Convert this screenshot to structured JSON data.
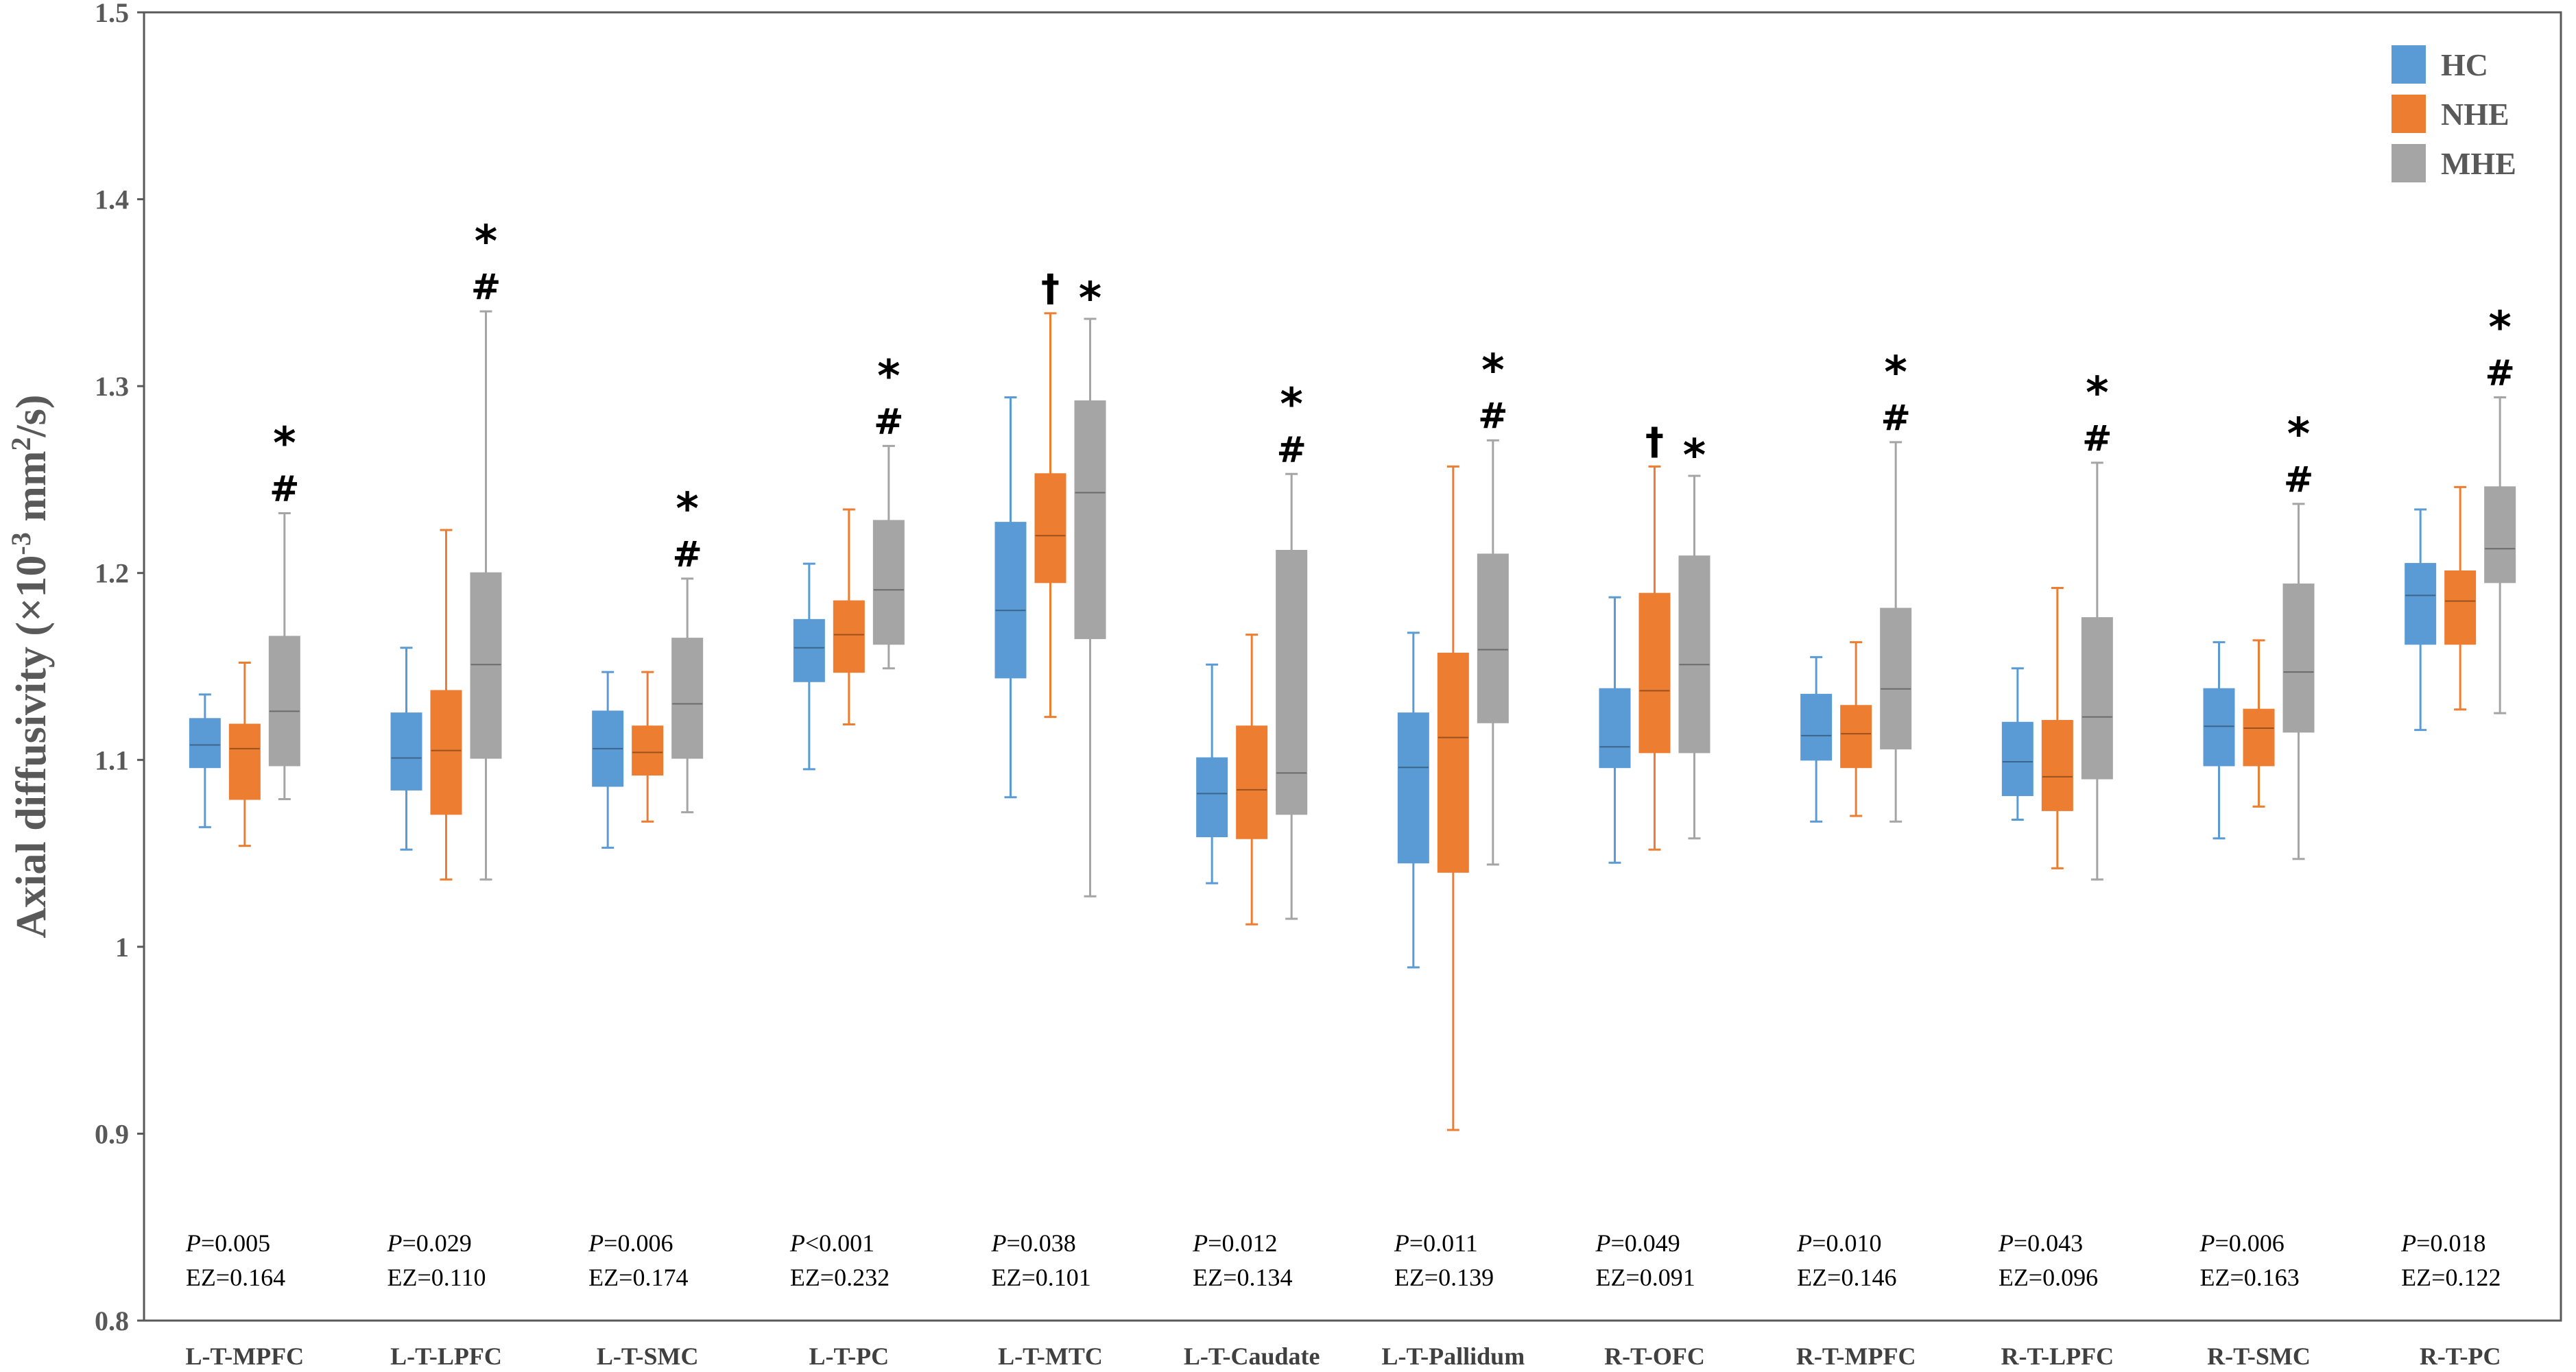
{
  "chart_data": {
    "type": "box",
    "title": "",
    "xlabel": "",
    "ylabel": "Axial diffusivity (×10-3 mm2/s)",
    "ylabel_parts": {
      "main": "Axial diffusivity (×10",
      "exp1": "-3",
      "mid": " mm",
      "exp2": "2",
      "end": "/s)"
    },
    "ylim": [
      0.8,
      1.5
    ],
    "yticks": [
      "0.8",
      "0.9",
      "1",
      "1.1",
      "1.2",
      "1.3",
      "1.4",
      "1.5"
    ],
    "legend_position": "top-right",
    "series": [
      {
        "name": "HC",
        "color": "#5B9BD5"
      },
      {
        "name": "NHE",
        "color": "#ED7D31"
      },
      {
        "name": "MHE",
        "color": "#A5A5A5"
      }
    ],
    "categories": [
      {
        "label": "L-T-MPFC",
        "p": "P=0.005",
        "ez": "EZ=0.164",
        "boxes": [
          [
            1.064,
            1.096,
            1.108,
            1.122,
            1.135
          ],
          [
            1.054,
            1.079,
            1.106,
            1.119,
            1.152
          ],
          [
            1.079,
            1.097,
            1.126,
            1.166,
            1.232
          ]
        ],
        "marks": [
          [
            "",
            "",
            ""
          ],
          [
            "",
            "",
            ""
          ],
          [
            "#",
            "*",
            ""
          ]
        ]
      },
      {
        "label": "L-T-LPFC",
        "p": "P=0.029",
        "ez": "EZ=0.110",
        "boxes": [
          [
            1.052,
            1.084,
            1.101,
            1.125,
            1.16
          ],
          [
            1.036,
            1.071,
            1.105,
            1.137,
            1.223
          ],
          [
            1.036,
            1.101,
            1.151,
            1.2,
            1.34
          ]
        ],
        "marks": [
          [
            "",
            "",
            ""
          ],
          [
            "",
            "",
            ""
          ],
          [
            "#",
            "*",
            ""
          ]
        ]
      },
      {
        "label": "L-T-SMC",
        "p": "P=0.006",
        "ez": "EZ=0.174",
        "boxes": [
          [
            1.053,
            1.086,
            1.106,
            1.126,
            1.147
          ],
          [
            1.067,
            1.092,
            1.104,
            1.118,
            1.147
          ],
          [
            1.072,
            1.101,
            1.13,
            1.165,
            1.197
          ]
        ],
        "marks": [
          [
            "",
            "",
            ""
          ],
          [
            "",
            "",
            ""
          ],
          [
            "#",
            "*",
            ""
          ]
        ]
      },
      {
        "label": "L-T-PC",
        "p": "P<0.001",
        "ez": "EZ=0.232",
        "boxes": [
          [
            1.095,
            1.142,
            1.16,
            1.175,
            1.205
          ],
          [
            1.119,
            1.147,
            1.167,
            1.185,
            1.234
          ],
          [
            1.149,
            1.162,
            1.191,
            1.228,
            1.268
          ]
        ],
        "marks": [
          [
            "",
            "",
            ""
          ],
          [
            "",
            "",
            ""
          ],
          [
            "#",
            "*",
            ""
          ]
        ]
      },
      {
        "label": "L-T-MTC",
        "p": "P=0.038",
        "ez": "EZ=0.101",
        "boxes": [
          [
            1.08,
            1.144,
            1.18,
            1.227,
            1.294
          ],
          [
            1.123,
            1.195,
            1.22,
            1.253,
            1.339
          ],
          [
            1.027,
            1.165,
            1.243,
            1.292,
            1.336
          ]
        ],
        "marks": [
          [
            "",
            "",
            ""
          ],
          [
            "†",
            "",
            ""
          ],
          [
            "*",
            "",
            ""
          ]
        ]
      },
      {
        "label": "L-T-Caudate",
        "p": "P=0.012",
        "ez": "EZ=0.134",
        "boxes": [
          [
            1.034,
            1.059,
            1.082,
            1.101,
            1.151
          ],
          [
            1.012,
            1.058,
            1.084,
            1.118,
            1.167
          ],
          [
            1.015,
            1.071,
            1.093,
            1.212,
            1.253
          ]
        ],
        "marks": [
          [
            "",
            "",
            ""
          ],
          [
            "",
            "",
            ""
          ],
          [
            "#",
            "*",
            ""
          ]
        ]
      },
      {
        "label": "L-T-Pallidum",
        "p": "P=0.011",
        "ez": "EZ=0.139",
        "boxes": [
          [
            0.989,
            1.045,
            1.096,
            1.125,
            1.168
          ],
          [
            0.902,
            1.04,
            1.112,
            1.157,
            1.257
          ],
          [
            1.044,
            1.12,
            1.159,
            1.21,
            1.271
          ]
        ],
        "marks": [
          [
            "",
            "",
            ""
          ],
          [
            "",
            "",
            ""
          ],
          [
            "#",
            "*",
            ""
          ]
        ]
      },
      {
        "label": "R-T-OFC",
        "p": "P=0.049",
        "ez": "EZ=0.091",
        "boxes": [
          [
            1.045,
            1.096,
            1.107,
            1.138,
            1.187
          ],
          [
            1.052,
            1.104,
            1.137,
            1.189,
            1.257
          ],
          [
            1.058,
            1.104,
            1.151,
            1.209,
            1.252
          ]
        ],
        "marks": [
          [
            "",
            "",
            ""
          ],
          [
            "†",
            "",
            ""
          ],
          [
            "*",
            "",
            ""
          ]
        ]
      },
      {
        "label": "R-T-MPFC",
        "p": "P=0.010",
        "ez": "EZ=0.146",
        "boxes": [
          [
            1.067,
            1.1,
            1.113,
            1.135,
            1.155
          ],
          [
            1.07,
            1.096,
            1.114,
            1.129,
            1.163
          ],
          [
            1.067,
            1.106,
            1.138,
            1.181,
            1.27
          ]
        ],
        "marks": [
          [
            "",
            "",
            ""
          ],
          [
            "",
            "",
            ""
          ],
          [
            "#",
            "*",
            ""
          ]
        ]
      },
      {
        "label": "R-T-LPFC",
        "p": "P=0.043",
        "ez": "EZ=0.096",
        "boxes": [
          [
            1.068,
            1.081,
            1.099,
            1.12,
            1.149
          ],
          [
            1.042,
            1.073,
            1.091,
            1.121,
            1.192
          ],
          [
            1.036,
            1.09,
            1.123,
            1.176,
            1.259
          ]
        ],
        "marks": [
          [
            "",
            "",
            ""
          ],
          [
            "",
            "",
            ""
          ],
          [
            "#",
            "*",
            ""
          ]
        ]
      },
      {
        "label": "R-T-SMC",
        "p": "P=0.006",
        "ez": "EZ=0.163",
        "boxes": [
          [
            1.058,
            1.097,
            1.118,
            1.138,
            1.163
          ],
          [
            1.075,
            1.097,
            1.117,
            1.127,
            1.164
          ],
          [
            1.047,
            1.115,
            1.147,
            1.194,
            1.237
          ]
        ],
        "marks": [
          [
            "",
            "",
            ""
          ],
          [
            "",
            "",
            ""
          ],
          [
            "#",
            "*",
            ""
          ]
        ]
      },
      {
        "label": "R-T-PC",
        "p": "P=0.018",
        "ez": "EZ=0.122",
        "boxes": [
          [
            1.116,
            1.162,
            1.188,
            1.205,
            1.234
          ],
          [
            1.127,
            1.162,
            1.185,
            1.201,
            1.246
          ],
          [
            1.125,
            1.195,
            1.213,
            1.246,
            1.294
          ]
        ],
        "marks": [
          [
            "",
            "",
            ""
          ],
          [
            "",
            "",
            ""
          ],
          [
            "#",
            "*",
            ""
          ]
        ]
      }
    ]
  }
}
